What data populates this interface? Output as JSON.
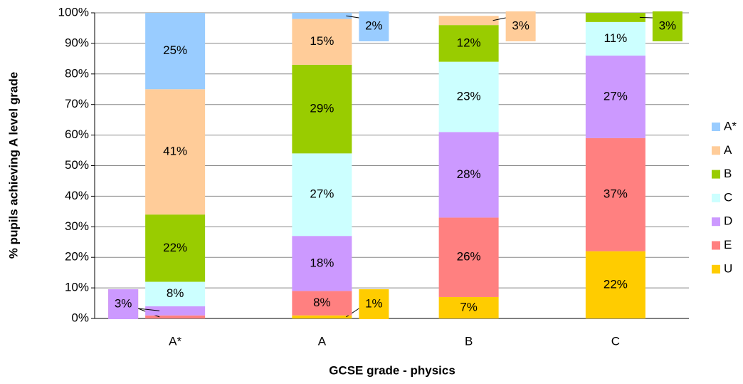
{
  "chart_data": {
    "type": "stacked_bar",
    "x_label": "GCSE grade - physics",
    "y_label": "% pupils achieving A level grade",
    "categories": [
      "A*",
      "A",
      "B",
      "C"
    ],
    "ylim": [
      0,
      100
    ],
    "yticks": [
      {
        "value": 0,
        "label": "0%"
      },
      {
        "value": 10,
        "label": "10%"
      },
      {
        "value": 20,
        "label": "20%"
      },
      {
        "value": 30,
        "label": "30%"
      },
      {
        "value": 40,
        "label": "40%"
      },
      {
        "value": 50,
        "label": "50%"
      },
      {
        "value": 60,
        "label": "60%"
      },
      {
        "value": 70,
        "label": "70%"
      },
      {
        "value": 80,
        "label": "80%"
      },
      {
        "value": 90,
        "label": "90%"
      },
      {
        "value": 100,
        "label": "100%"
      }
    ],
    "grid": true,
    "legend": "right",
    "series": [
      {
        "name": "A*",
        "color": "#99ccff",
        "values": [
          25,
          2,
          0,
          0
        ],
        "value_labels": [
          "25%",
          "2%",
          null,
          null
        ]
      },
      {
        "name": "A",
        "color": "#ffcc99",
        "values": [
          41,
          15,
          3,
          0
        ],
        "value_labels": [
          "41%",
          "15%",
          "3%",
          null
        ]
      },
      {
        "name": "B",
        "color": "#99cc00",
        "values": [
          22,
          29,
          12,
          3
        ],
        "value_labels": [
          "22%",
          "29%",
          "12%",
          "3%"
        ]
      },
      {
        "name": "C",
        "color": "#ccffff",
        "values": [
          8,
          27,
          23,
          11
        ],
        "value_labels": [
          "8%",
          "27%",
          "23%",
          "11%"
        ]
      },
      {
        "name": "D",
        "color": "#cc99ff",
        "values": [
          3,
          18,
          28,
          27
        ],
        "value_labels": [
          "3%",
          "18%",
          "28%",
          "27%"
        ]
      },
      {
        "name": "E",
        "color": "#ff8080",
        "values": [
          1,
          8,
          26,
          37
        ],
        "value_labels": [
          "1%",
          "8%",
          "26%",
          "37%"
        ]
      },
      {
        "name": "U",
        "color": "#ffcc00",
        "values": [
          0,
          1,
          7,
          22
        ],
        "value_labels": [
          null,
          "1%",
          "7%",
          "22%"
        ]
      }
    ]
  }
}
